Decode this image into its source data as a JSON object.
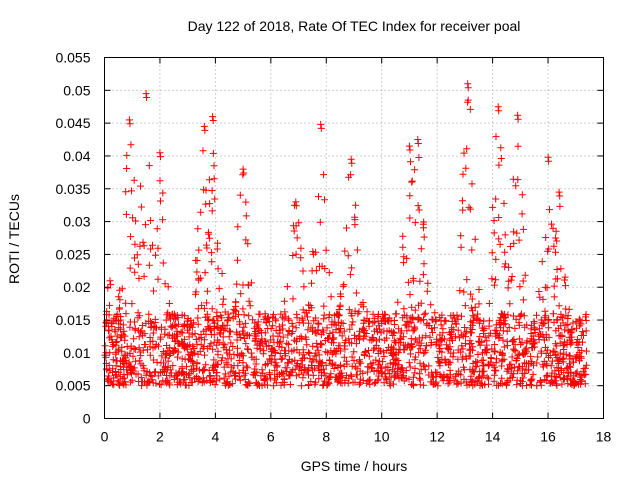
{
  "chart_data": {
    "type": "scatter",
    "title": "Day 122 of 2018, Rate Of TEC Index for receiver poal",
    "xlabel": "GPS time / hours",
    "ylabel": "ROTI / TECUs",
    "xlim": [
      0,
      18
    ],
    "ylim": [
      0,
      0.055
    ],
    "xticks": [
      0,
      2,
      4,
      6,
      8,
      10,
      12,
      14,
      16,
      18
    ],
    "xtick_labels": [
      "0",
      "2",
      "4",
      "6",
      "8",
      "10",
      "12",
      "14",
      "16",
      "18"
    ],
    "yticks": [
      0,
      0.005,
      0.01,
      0.015,
      0.02,
      0.025,
      0.03,
      0.035,
      0.04,
      0.045,
      0.05,
      0.055
    ],
    "ytick_labels": [
      "0",
      "0.005",
      "0.01",
      "0.015",
      "0.02",
      "0.025",
      "0.03",
      "0.035",
      "0.04",
      "0.045",
      "0.05",
      "0.055"
    ],
    "grid": true,
    "marker": "+",
    "series": [
      {
        "name": "ROTI",
        "color": "#ff0000",
        "x_range": [
          0.0,
          17.4
        ],
        "sample_count": 2200,
        "baseline_range": [
          0.005,
          0.016
        ],
        "peaks": [
          {
            "x": 0.2,
            "y": 0.021
          },
          {
            "x": 0.9,
            "y": 0.0455
          },
          {
            "x": 1.5,
            "y": 0.0495
          },
          {
            "x": 2.0,
            "y": 0.0405
          },
          {
            "x": 3.6,
            "y": 0.0445
          },
          {
            "x": 3.9,
            "y": 0.046
          },
          {
            "x": 5.0,
            "y": 0.038
          },
          {
            "x": 6.9,
            "y": 0.033
          },
          {
            "x": 7.8,
            "y": 0.0448
          },
          {
            "x": 8.9,
            "y": 0.0395
          },
          {
            "x": 11.0,
            "y": 0.0415
          },
          {
            "x": 11.3,
            "y": 0.0425
          },
          {
            "x": 13.1,
            "y": 0.051
          },
          {
            "x": 14.2,
            "y": 0.0475
          },
          {
            "x": 14.9,
            "y": 0.0462
          },
          {
            "x": 16.0,
            "y": 0.0398
          },
          {
            "x": 16.4,
            "y": 0.0345
          }
        ]
      }
    ]
  }
}
